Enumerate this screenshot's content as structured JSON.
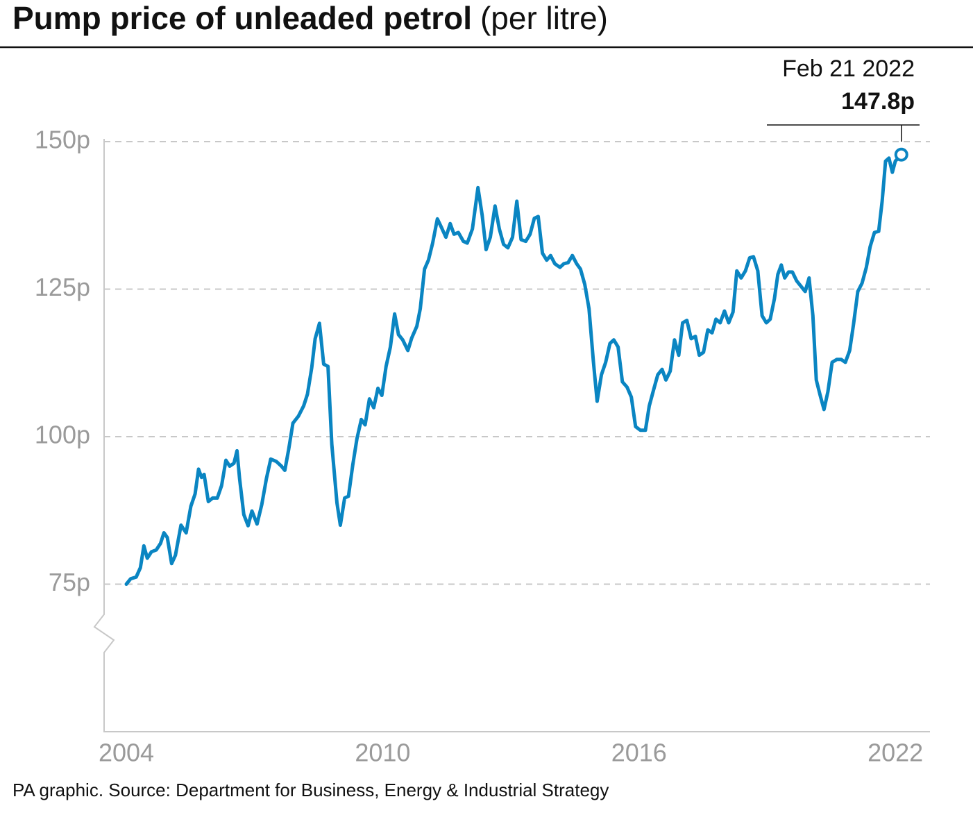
{
  "chart_data": {
    "type": "line",
    "title": "Pump price of unleaded petrol",
    "subtitle": "(per litre)",
    "source": "PA graphic. Source: Department for Business, Energy & Industrial Strategy",
    "annotation": {
      "date": "Feb 21 2022",
      "label": "147.8p"
    },
    "color": "#0a85c2",
    "xlim": [
      2003.48,
      2022.81
    ],
    "xticks": [
      2004,
      2010,
      2016,
      2022
    ],
    "ylim": [
      50,
      150
    ],
    "yticks": [
      {
        "value": 75,
        "label": "75p"
      },
      {
        "value": 100,
        "label": "100p"
      },
      {
        "value": 125,
        "label": "125p"
      },
      {
        "value": 150,
        "label": "150p"
      }
    ],
    "grid": true,
    "x": [
      2004.0,
      2004.1,
      2004.23,
      2004.33,
      2004.41,
      2004.49,
      2004.59,
      2004.7,
      2004.8,
      2004.88,
      2004.96,
      2005.06,
      2005.15,
      2005.28,
      2005.4,
      2005.51,
      2005.61,
      2005.69,
      2005.76,
      2005.82,
      2005.92,
      2006.02,
      2006.13,
      2006.23,
      2006.33,
      2006.42,
      2006.52,
      2006.59,
      2006.65,
      2006.75,
      2006.85,
      2006.94,
      2007.06,
      2007.17,
      2007.28,
      2007.38,
      2007.51,
      2007.63,
      2007.71,
      2007.8,
      2007.9,
      2008.03,
      2008.15,
      2008.24,
      2008.34,
      2008.42,
      2008.52,
      2008.62,
      2008.72,
      2008.81,
      2008.93,
      2009.01,
      2009.11,
      2009.2,
      2009.3,
      2009.4,
      2009.5,
      2009.59,
      2009.69,
      2009.79,
      2009.89,
      2009.98,
      2010.08,
      2010.18,
      2010.28,
      2010.37,
      2010.47,
      2010.59,
      2010.68,
      2010.8,
      2010.88,
      2010.98,
      2011.07,
      2011.17,
      2011.28,
      2011.38,
      2011.48,
      2011.58,
      2011.67,
      2011.77,
      2011.89,
      2011.98,
      2012.1,
      2012.23,
      2012.33,
      2012.42,
      2012.52,
      2012.63,
      2012.73,
      2012.83,
      2012.93,
      2013.04,
      2013.14,
      2013.24,
      2013.35,
      2013.45,
      2013.55,
      2013.64,
      2013.74,
      2013.84,
      2013.93,
      2014.03,
      2014.15,
      2014.24,
      2014.34,
      2014.44,
      2014.54,
      2014.63,
      2014.73,
      2014.83,
      2014.93,
      2015.02,
      2015.12,
      2015.22,
      2015.32,
      2015.41,
      2015.51,
      2015.61,
      2015.72,
      2015.82,
      2015.92,
      2016.03,
      2016.15,
      2016.24,
      2016.34,
      2016.44,
      2016.54,
      2016.63,
      2016.73,
      2016.83,
      2016.93,
      2017.02,
      2017.12,
      2017.22,
      2017.32,
      2017.41,
      2017.51,
      2017.61,
      2017.71,
      2017.8,
      2017.9,
      2018.0,
      2018.1,
      2018.2,
      2018.29,
      2018.39,
      2018.49,
      2018.59,
      2018.68,
      2018.78,
      2018.88,
      2018.98,
      2019.07,
      2019.17,
      2019.25,
      2019.33,
      2019.41,
      2019.5,
      2019.59,
      2019.69,
      2019.79,
      2019.89,
      2019.98,
      2020.07,
      2020.15,
      2020.24,
      2020.33,
      2020.42,
      2020.52,
      2020.63,
      2020.73,
      2020.83,
      2020.93,
      2021.02,
      2021.12,
      2021.22,
      2021.32,
      2021.41,
      2021.51,
      2021.61,
      2021.69,
      2021.77,
      2021.85,
      2021.93,
      2022.0,
      2022.14
    ],
    "values": [
      75.0,
      75.9,
      76.2,
      77.8,
      81.5,
      79.4,
      80.5,
      80.8,
      81.9,
      83.7,
      82.9,
      78.5,
      79.9,
      85.0,
      83.7,
      88.2,
      90.3,
      94.5,
      93.1,
      93.6,
      89.0,
      89.6,
      89.6,
      91.7,
      96.0,
      95.0,
      95.5,
      97.6,
      92.9,
      86.8,
      84.9,
      87.4,
      85.2,
      88.5,
      92.9,
      96.2,
      95.8,
      95.0,
      94.3,
      97.8,
      102.3,
      103.5,
      105.2,
      107.2,
      111.7,
      116.6,
      119.2,
      112.3,
      111.9,
      98.7,
      88.8,
      85.0,
      89.6,
      89.9,
      95.2,
      99.7,
      102.9,
      102.0,
      106.4,
      104.9,
      108.2,
      107.0,
      111.9,
      115.2,
      120.8,
      117.3,
      116.4,
      114.6,
      116.7,
      118.7,
      121.7,
      128.4,
      129.9,
      132.8,
      136.9,
      135.4,
      133.8,
      136.1,
      134.3,
      134.6,
      133.1,
      132.8,
      135.2,
      142.2,
      137.5,
      131.7,
      133.8,
      139.1,
      135.2,
      132.6,
      132.0,
      133.8,
      139.9,
      133.4,
      133.1,
      134.3,
      137.0,
      137.3,
      131.1,
      129.9,
      130.7,
      129.3,
      128.7,
      129.3,
      129.5,
      130.7,
      129.3,
      128.4,
      125.8,
      121.7,
      112.9,
      106.0,
      110.5,
      112.6,
      115.8,
      116.4,
      115.2,
      109.3,
      108.4,
      106.7,
      101.7,
      101.1,
      101.1,
      105.2,
      107.9,
      110.5,
      111.4,
      109.6,
      111.1,
      116.4,
      113.8,
      119.3,
      119.7,
      116.6,
      117.0,
      113.8,
      114.3,
      118.1,
      117.6,
      119.9,
      119.3,
      121.3,
      119.3,
      121.1,
      128.1,
      126.9,
      128.1,
      130.3,
      130.5,
      128.1,
      120.5,
      119.3,
      119.9,
      123.4,
      127.5,
      129.1,
      126.9,
      127.9,
      127.9,
      126.4,
      125.5,
      124.6,
      126.9,
      120.5,
      109.6,
      107.0,
      104.6,
      107.6,
      112.6,
      113.1,
      113.1,
      112.6,
      114.6,
      119.0,
      124.6,
      126.0,
      128.7,
      132.2,
      134.6,
      134.8,
      139.9,
      146.7,
      147.2,
      144.8,
      146.7,
      147.8
    ]
  }
}
